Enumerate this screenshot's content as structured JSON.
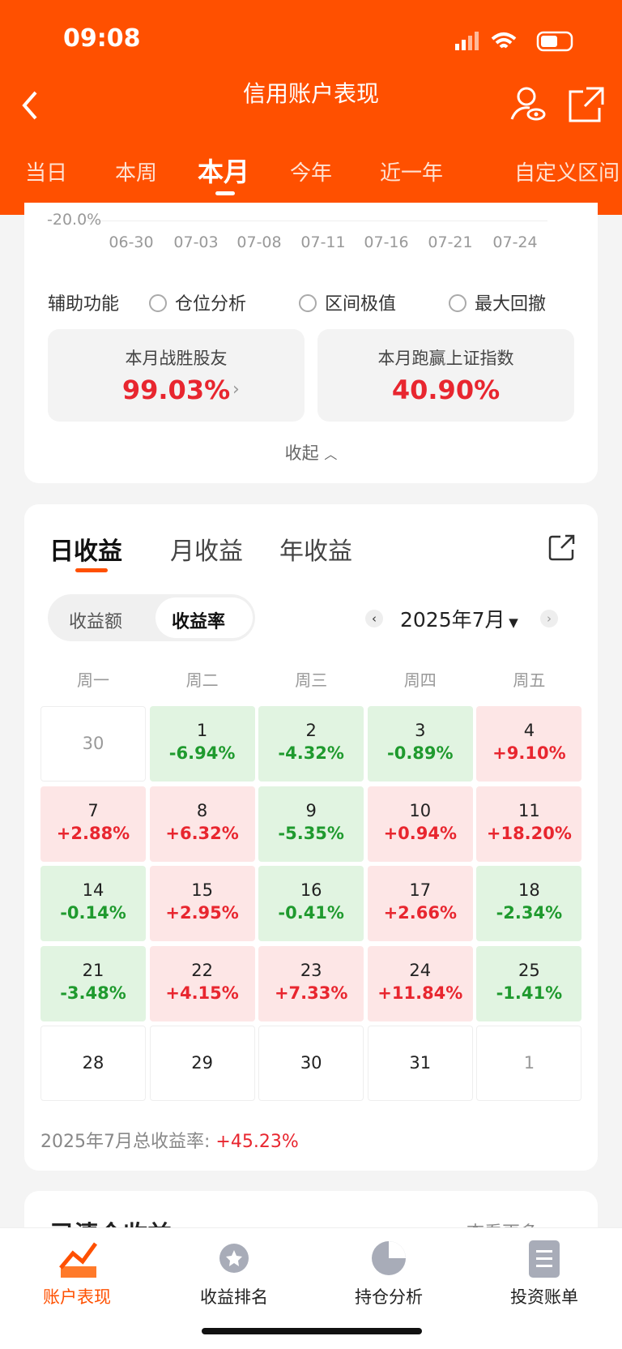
{
  "status_bar": {
    "time": "09:08"
  },
  "header": {
    "title": "信用账户表现"
  },
  "period_tabs": {
    "items": [
      "当日",
      "本周",
      "本月",
      "今年",
      "近一年",
      "自定义区间"
    ],
    "active": 2
  },
  "chart_remnant": {
    "y_label": "-20.0%",
    "x_labels": [
      "06-30",
      "07-03",
      "07-08",
      "07-11",
      "07-16",
      "07-21",
      "07-24"
    ]
  },
  "aux": {
    "label": "辅助功能",
    "options": [
      "仓位分析",
      "区间极值",
      "最大回撤"
    ]
  },
  "stat_cards": [
    {
      "label": "本月战胜股友",
      "value": "99.03%"
    },
    {
      "label": "本月跑赢上证指数",
      "value": "40.90%"
    }
  ],
  "collapse": "收起",
  "earnings_tabs": {
    "items": [
      "日收益",
      "月收益",
      "年收益"
    ],
    "active": 0
  },
  "toggle": {
    "items": [
      "收益额",
      "收益率"
    ],
    "active": 1
  },
  "month": "2025年7月",
  "weekdays": [
    "周一",
    "周二",
    "周三",
    "周四",
    "周五"
  ],
  "calendar": [
    {
      "day": "30",
      "muted": true
    },
    {
      "day": "1",
      "change": "-6.94%"
    },
    {
      "day": "2",
      "change": "-4.32%"
    },
    {
      "day": "3",
      "change": "-0.89%"
    },
    {
      "day": "4",
      "change": "+9.10%"
    },
    {
      "day": "7",
      "change": "+2.88%"
    },
    {
      "day": "8",
      "change": "+6.32%"
    },
    {
      "day": "9",
      "change": "-5.35%"
    },
    {
      "day": "10",
      "change": "+0.94%"
    },
    {
      "day": "11",
      "change": "+18.20%"
    },
    {
      "day": "14",
      "change": "-0.14%"
    },
    {
      "day": "15",
      "change": "+2.95%"
    },
    {
      "day": "16",
      "change": "-0.41%"
    },
    {
      "day": "17",
      "change": "+2.66%"
    },
    {
      "day": "18",
      "change": "-2.34%"
    },
    {
      "day": "21",
      "change": "-3.48%"
    },
    {
      "day": "22",
      "change": "+4.15%"
    },
    {
      "day": "23",
      "change": "+7.33%"
    },
    {
      "day": "24",
      "change": "+11.84%"
    },
    {
      "day": "25",
      "change": "-1.41%"
    },
    {
      "day": "28"
    },
    {
      "day": "29"
    },
    {
      "day": "30"
    },
    {
      "day": "31"
    },
    {
      "day": "1",
      "muted": true
    }
  ],
  "total": {
    "label": "2025年7月总收益率:",
    "value": "+45.23%"
  },
  "next_section": {
    "title": "已清仓收益",
    "more": "查看更多"
  },
  "bottom_nav": {
    "items": [
      "账户表现",
      "收益排名",
      "持仓分析",
      "投资账单"
    ],
    "active": 0
  }
}
